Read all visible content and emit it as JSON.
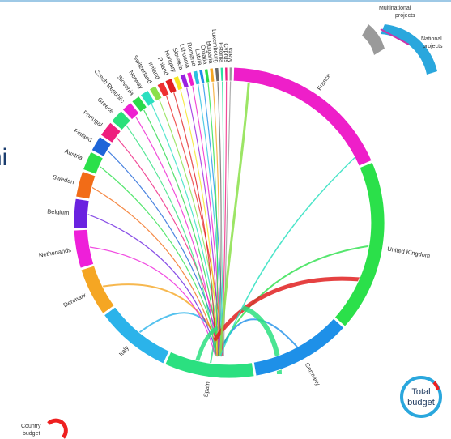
{
  "partial_heading": "ni",
  "countries": [
    {
      "name": "France",
      "value": 100,
      "color": "#ee1fc9"
    },
    {
      "name": "United Kingdom",
      "value": 100,
      "color": "#2be04a"
    },
    {
      "name": "Germany",
      "value": 58,
      "color": "#1e90e8"
    },
    {
      "name": "Spain",
      "value": 52,
      "color": "#2be080"
    },
    {
      "name": "Italy",
      "value": 44,
      "color": "#2bb3ea"
    },
    {
      "name": "Denmark",
      "value": 28,
      "color": "#f5a623"
    },
    {
      "name": "Netherlands",
      "value": 22,
      "color": "#ee1fd9"
    },
    {
      "name": "Belgium",
      "value": 17,
      "color": "#6a22e0"
    },
    {
      "name": "Sweden",
      "value": 15,
      "color": "#f26c17"
    },
    {
      "name": "Austria",
      "value": 11,
      "color": "#2be04a"
    },
    {
      "name": "Finland",
      "value": 9,
      "color": "#1e65d8"
    },
    {
      "name": "Portugal",
      "value": 9,
      "color": "#ee1f7e"
    },
    {
      "name": "Greece",
      "value": 8,
      "color": "#2be07a"
    },
    {
      "name": "Czech Republic",
      "value": 6,
      "color": "#ee1fd0"
    },
    {
      "name": "Slovenia",
      "value": 5,
      "color": "#2bd94a"
    },
    {
      "name": "Norway",
      "value": 5,
      "color": "#2be0c0"
    },
    {
      "name": "Switzerland",
      "value": 4,
      "color": "#8be04a"
    },
    {
      "name": "Ireland",
      "value": 4,
      "color": "#ee3030"
    },
    {
      "name": "Poland",
      "value": 4,
      "color": "#e02020"
    },
    {
      "name": "Hungary",
      "value": 3,
      "color": "#f5e623"
    },
    {
      "name": "Slovakia",
      "value": 3,
      "color": "#9a22e0"
    },
    {
      "name": "Lithuania",
      "value": 2.5,
      "color": "#ee1fc9"
    },
    {
      "name": "Romania",
      "value": 2.5,
      "color": "#2bc0e0"
    },
    {
      "name": "Latvia",
      "value": 2,
      "color": "#1e90e8"
    },
    {
      "name": "Croatia",
      "value": 2,
      "color": "#2be04a"
    },
    {
      "name": "Bulgaria",
      "value": 2,
      "color": "#f5a623"
    },
    {
      "name": "Luxembourg",
      "value": 2,
      "color": "#6a6a6a"
    },
    {
      "name": "Estonia",
      "value": 1.5,
      "color": "#2be0a0"
    },
    {
      "name": "Cyprus",
      "value": 1.5,
      "color": "#ee1f7e"
    },
    {
      "name": "Malta",
      "value": 1.5,
      "color": "#999999"
    }
  ],
  "legend_top": {
    "multinational": "Multinational projects",
    "national": "National projects"
  },
  "legend_bottom": {
    "country_budget": "Country budget"
  },
  "total_budget": {
    "line1": "Total",
    "line2": "budget"
  }
}
